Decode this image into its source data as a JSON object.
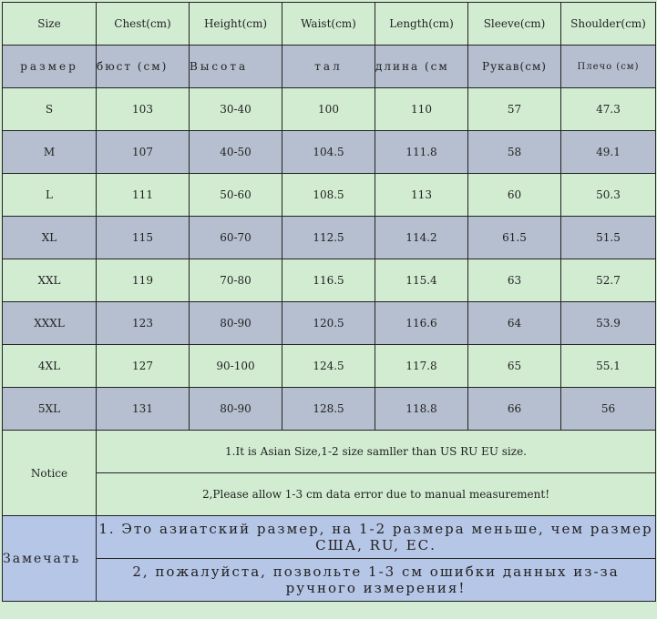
{
  "headers": [
    "Size",
    "Chest(cm)",
    "Height(cm)",
    "Waist(cm)",
    "Length(cm)",
    "Sleeve(cm)",
    "Shoulder(cm)"
  ],
  "headers_ru": [
    "размер",
    "бюст (см)",
    "Высота",
    "тал",
    "длина (см",
    "Рукав(см)",
    "Плечо (см)"
  ],
  "rows": [
    [
      "S",
      "103",
      "30-40",
      "100",
      "110",
      "57",
      "47.3"
    ],
    [
      "M",
      "107",
      "40-50",
      "104.5",
      "111.8",
      "58",
      "49.1"
    ],
    [
      "L",
      "111",
      "50-60",
      "108.5",
      "113",
      "60",
      "50.3"
    ],
    [
      "XL",
      "115",
      "60-70",
      "112.5",
      "114.2",
      "61.5",
      "51.5"
    ],
    [
      "XXL",
      "119",
      "70-80",
      "116.5",
      "115.4",
      "63",
      "52.7"
    ],
    [
      "XXXL",
      "123",
      "80-90",
      "120.5",
      "116.6",
      "64",
      "53.9"
    ],
    [
      "4XL",
      "127",
      "90-100",
      "124.5",
      "117.8",
      "65",
      "55.1"
    ],
    [
      "5XL",
      "131",
      "80-90",
      "128.5",
      "118.8",
      "66",
      "56"
    ]
  ],
  "notice": {
    "label": "Notice",
    "lines": [
      "1.It is Asian Size,1-2 size samller than US RU EU size.",
      "2,Please allow 1-3 cm data error due to manual measurement!"
    ]
  },
  "notice_ru": {
    "label": "Замечать",
    "lines": [
      "1. Это азиатский размер, на 1-2 размера меньше, чем размер США, RU, ЕС.",
      "2, пожалуйста, позвольте 1-3 см ошибки данных из-за ручного измерения!"
    ]
  },
  "colors": {
    "green": "#d2ecd2",
    "gray_blue": "#b6bfcf",
    "blue": "#b6c6e6"
  }
}
